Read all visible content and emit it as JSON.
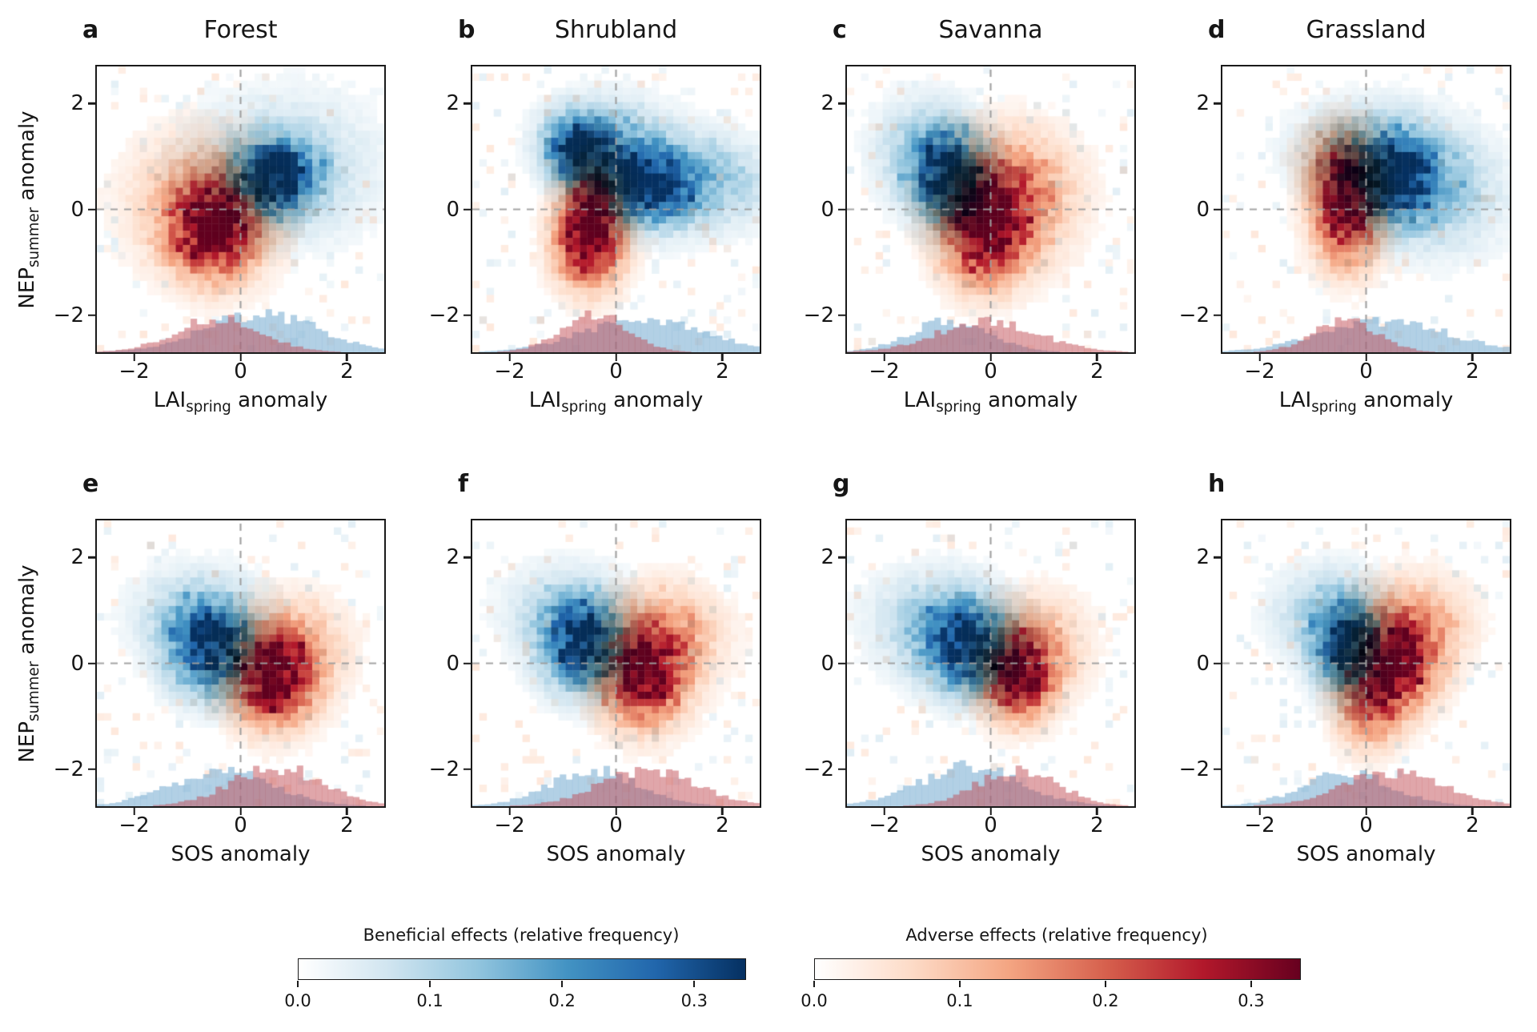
{
  "figure": {
    "ylabel": {
      "pre": "NEP",
      "sub": "summer",
      "post": " anomaly"
    },
    "row1_xlabel": {
      "pre": "LAI",
      "sub": "spring",
      "post": " anomaly"
    },
    "row2_xlabel": "SOS anomaly",
    "xtick_labels": [
      "−2",
      "0",
      "2"
    ],
    "ytick_labels": [
      "2",
      "0",
      "−2"
    ]
  },
  "chart_data": {
    "type": "heatmap",
    "subtype": "bivariate density (blue=beneficial, red=adverse) with marginal x-histograms and dashed zero crosshairs",
    "axes": {
      "xlim": [
        -2.7,
        2.7
      ],
      "ylim": [
        -2.7,
        2.7
      ],
      "xticks": [
        -2,
        0,
        2
      ],
      "yticks": [
        2,
        0,
        -2
      ],
      "grid": false
    },
    "colors": {
      "blue_cmap": [
        "#ffffff",
        "#d1e5f0",
        "#92c5de",
        "#4393c3",
        "#2166ac",
        "#053061"
      ],
      "red_cmap": [
        "#ffffff",
        "#fddbc7",
        "#f4a582",
        "#d6604d",
        "#b2182b",
        "#67001f"
      ],
      "blue_hist_fill": "rgba(114,170,207,0.55)",
      "red_hist_fill": "rgba(193,78,86,0.5)",
      "dashed_line": "rgba(158,158,158,0.95)"
    },
    "marginal_hist_max_height_axis_units": 0.8,
    "panels": [
      {
        "label": "a",
        "title": "Forest",
        "row": 1,
        "x_variable": "LAI_spring anomaly",
        "y_variable": "NEP_summer anomaly",
        "blue_blobs": [
          {
            "c": [
              0.65,
              0.6
            ],
            "s": [
              0.5,
              0.45
            ],
            "a": 1.0
          },
          {
            "c": [
              0.8,
              0.8
            ],
            "s": [
              1.1,
              0.85
            ],
            "a": 0.22
          }
        ],
        "red_blobs": [
          {
            "c": [
              -0.5,
              -0.35
            ],
            "s": [
              0.55,
              0.6
            ],
            "a": 1.0
          },
          {
            "c": [
              -0.7,
              0.2
            ],
            "s": [
              0.9,
              0.8
            ],
            "a": 0.25
          }
        ],
        "blue_hist": {
          "mu": 0.4,
          "sigma": 1.05,
          "peak": 1.0
        },
        "red_hist": {
          "mu": -0.45,
          "sigma": 0.8,
          "peak": 0.85
        }
      },
      {
        "label": "b",
        "title": "Shrubland",
        "row": 1,
        "x_variable": "LAI_spring anomaly",
        "y_variable": "NEP_summer anomaly",
        "blue_blobs": [
          {
            "c": [
              -0.75,
              1.1
            ],
            "s": [
              0.35,
              0.4
            ],
            "a": 0.95
          },
          {
            "c": [
              0.5,
              0.45
            ],
            "s": [
              0.55,
              0.45
            ],
            "a": 1.0
          },
          {
            "c": [
              1.4,
              0.5
            ],
            "s": [
              0.9,
              0.55
            ],
            "a": 0.4
          },
          {
            "c": [
              -0.2,
              1.3
            ],
            "s": [
              0.7,
              0.5
            ],
            "a": 0.4
          }
        ],
        "red_blobs": [
          {
            "c": [
              -0.5,
              -0.6
            ],
            "s": [
              0.4,
              0.55
            ],
            "a": 1.0
          },
          {
            "c": [
              -0.4,
              0.2
            ],
            "s": [
              0.35,
              0.6
            ],
            "a": 0.6
          }
        ],
        "blue_hist": {
          "mu": 0.55,
          "sigma": 1.15,
          "peak": 0.85
        },
        "red_hist": {
          "mu": -0.42,
          "sigma": 0.62,
          "peak": 0.95
        }
      },
      {
        "label": "c",
        "title": "Savanna",
        "row": 1,
        "x_variable": "LAI_spring anomaly",
        "y_variable": "NEP_summer anomaly",
        "blue_blobs": [
          {
            "c": [
              -0.75,
              0.55
            ],
            "s": [
              0.45,
              0.55
            ],
            "a": 1.0
          },
          {
            "c": [
              -1.2,
              1.1
            ],
            "s": [
              0.6,
              0.6
            ],
            "a": 0.3
          }
        ],
        "red_blobs": [
          {
            "c": [
              -0.1,
              -0.35
            ],
            "s": [
              0.5,
              0.65
            ],
            "a": 1.0
          },
          {
            "c": [
              0.35,
              0.25
            ],
            "s": [
              0.75,
              0.75
            ],
            "a": 0.5
          }
        ],
        "blue_hist": {
          "mu": -0.75,
          "sigma": 0.75,
          "peak": 0.8
        },
        "red_hist": {
          "mu": -0.05,
          "sigma": 0.95,
          "peak": 0.8
        }
      },
      {
        "label": "d",
        "title": "Grassland",
        "row": 1,
        "x_variable": "LAI_spring anomaly",
        "y_variable": "NEP_summer anomaly",
        "blue_blobs": [
          {
            "c": [
              0.5,
              0.55
            ],
            "s": [
              0.5,
              0.5
            ],
            "a": 0.95
          },
          {
            "c": [
              0.1,
              1.1
            ],
            "s": [
              0.85,
              0.55
            ],
            "a": 0.35
          },
          {
            "c": [
              1.3,
              0.3
            ],
            "s": [
              0.8,
              0.7
            ],
            "a": 0.3
          }
        ],
        "red_blobs": [
          {
            "c": [
              -0.35,
              0.0
            ],
            "s": [
              0.4,
              0.65
            ],
            "a": 1.0
          },
          {
            "c": [
              -0.45,
              0.9
            ],
            "s": [
              0.45,
              0.45
            ],
            "a": 0.4
          }
        ],
        "blue_hist": {
          "mu": 0.35,
          "sigma": 1.2,
          "peak": 0.8
        },
        "red_hist": {
          "mu": -0.4,
          "sigma": 0.6,
          "peak": 0.8
        }
      },
      {
        "label": "e",
        "title": "",
        "row": 2,
        "x_variable": "SOS anomaly",
        "y_variable": "NEP_summer anomaly",
        "blue_blobs": [
          {
            "c": [
              -0.55,
              0.25
            ],
            "s": [
              0.5,
              0.55
            ],
            "a": 1.0
          },
          {
            "c": [
              -0.8,
              0.9
            ],
            "s": [
              0.75,
              0.55
            ],
            "a": 0.25
          }
        ],
        "red_blobs": [
          {
            "c": [
              0.6,
              -0.3
            ],
            "s": [
              0.5,
              0.55
            ],
            "a": 1.0
          },
          {
            "c": [
              0.95,
              0.3
            ],
            "s": [
              0.65,
              0.6
            ],
            "a": 0.3
          }
        ],
        "blue_hist": {
          "mu": -0.35,
          "sigma": 0.95,
          "peak": 0.9
        },
        "red_hist": {
          "mu": 0.7,
          "sigma": 0.85,
          "peak": 1.0
        }
      },
      {
        "label": "f",
        "title": "",
        "row": 2,
        "x_variable": "SOS anomaly",
        "y_variable": "NEP_summer anomaly",
        "blue_blobs": [
          {
            "c": [
              -0.6,
              0.35
            ],
            "s": [
              0.5,
              0.55
            ],
            "a": 1.0
          },
          {
            "c": [
              -1.0,
              1.0
            ],
            "s": [
              0.7,
              0.55
            ],
            "a": 0.2
          }
        ],
        "red_blobs": [
          {
            "c": [
              0.5,
              -0.2
            ],
            "s": [
              0.5,
              0.6
            ],
            "a": 1.0
          },
          {
            "c": [
              0.95,
              0.5
            ],
            "s": [
              0.65,
              0.6
            ],
            "a": 0.35
          }
        ],
        "blue_hist": {
          "mu": -0.4,
          "sigma": 0.85,
          "peak": 0.9
        },
        "red_hist": {
          "mu": 0.6,
          "sigma": 0.9,
          "peak": 0.95
        }
      },
      {
        "label": "g",
        "title": "",
        "row": 2,
        "x_variable": "SOS anomaly",
        "y_variable": "NEP_summer anomaly",
        "blue_blobs": [
          {
            "c": [
              -0.4,
              0.3
            ],
            "s": [
              0.55,
              0.55
            ],
            "a": 1.0
          },
          {
            "c": [
              -1.1,
              0.8
            ],
            "s": [
              0.75,
              0.6
            ],
            "a": 0.25
          }
        ],
        "red_blobs": [
          {
            "c": [
              0.5,
              -0.25
            ],
            "s": [
              0.42,
              0.5
            ],
            "a": 1.0
          },
          {
            "c": [
              0.85,
              0.35
            ],
            "s": [
              0.6,
              0.6
            ],
            "a": 0.3
          }
        ],
        "blue_hist": {
          "mu": -0.4,
          "sigma": 0.95,
          "peak": 1.0
        },
        "red_hist": {
          "mu": 0.5,
          "sigma": 0.75,
          "peak": 0.95
        }
      },
      {
        "label": "h",
        "title": "",
        "row": 2,
        "x_variable": "SOS anomaly",
        "y_variable": "NEP_summer anomaly",
        "blue_blobs": [
          {
            "c": [
              -0.35,
              0.3
            ],
            "s": [
              0.4,
              0.55
            ],
            "a": 1.0
          },
          {
            "c": [
              -0.75,
              0.95
            ],
            "s": [
              0.65,
              0.55
            ],
            "a": 0.25
          }
        ],
        "red_blobs": [
          {
            "c": [
              0.55,
              0.0
            ],
            "s": [
              0.5,
              0.55
            ],
            "a": 1.0
          },
          {
            "c": [
              0.05,
              -0.75
            ],
            "s": [
              0.4,
              0.55
            ],
            "a": 0.5
          },
          {
            "c": [
              0.9,
              0.8
            ],
            "s": [
              0.65,
              0.55
            ],
            "a": 0.3
          }
        ],
        "blue_hist": {
          "mu": -0.35,
          "sigma": 0.85,
          "peak": 0.82
        },
        "red_hist": {
          "mu": 0.5,
          "sigma": 0.95,
          "peak": 0.88
        }
      }
    ],
    "colorbars": [
      {
        "title": "Beneficial effects (relative frequency)",
        "ticks": [
          0.0,
          0.1,
          0.2,
          0.3
        ],
        "tick_labels": [
          "0.0",
          "0.1",
          "0.2",
          "0.3"
        ],
        "vmin": 0.0,
        "vmax": 0.338,
        "cmap": [
          "#ffffff",
          "#d1e5f0",
          "#92c5de",
          "#4393c3",
          "#2166ac",
          "#053061"
        ]
      },
      {
        "title": "Adverse effects (relative frequency)",
        "ticks": [
          0.0,
          0.1,
          0.2,
          0.3
        ],
        "tick_labels": [
          "0.0",
          "0.1",
          "0.2",
          "0.3"
        ],
        "vmin": 0.0,
        "vmax": 0.333,
        "cmap": [
          "#ffffff",
          "#fddbc7",
          "#f4a582",
          "#d6604d",
          "#b2182b",
          "#67001f"
        ]
      }
    ]
  }
}
